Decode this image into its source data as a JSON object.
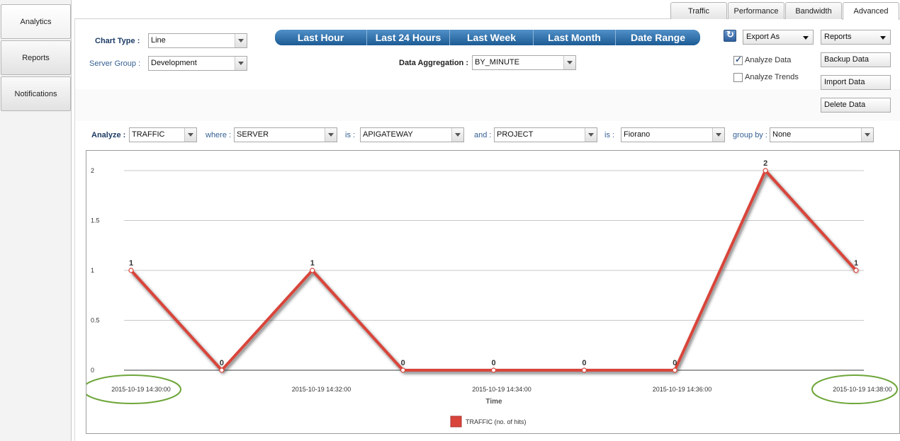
{
  "sidebar": {
    "items": [
      {
        "label": "Analytics",
        "active": true
      },
      {
        "label": "Reports",
        "active": false
      },
      {
        "label": "Notifications",
        "active": false
      }
    ]
  },
  "tabs": [
    {
      "label": "Traffic",
      "active": false
    },
    {
      "label": "Performance",
      "active": false
    },
    {
      "label": "Bandwidth",
      "active": false
    },
    {
      "label": "Advanced",
      "active": true
    }
  ],
  "controls": {
    "chart_type_label": "Chart Type :",
    "chart_type_value": "Line",
    "server_group_label": "Server Group :",
    "server_group_value": "Development",
    "data_aggregation_label": "Data Aggregation :",
    "data_aggregation_value": "BY_MINUTE"
  },
  "periods": [
    "Last Hour",
    "Last 24 Hours",
    "Last Week",
    "Last Month",
    "Date Range"
  ],
  "right_panel": {
    "export_label": "Export As",
    "reports_label": "Reports",
    "analyze_data_label": "Analyze Data",
    "analyze_data_checked": true,
    "analyze_trends_label": "Analyze Trends",
    "analyze_trends_checked": false,
    "backup_label": "Backup Data",
    "import_label": "Import Data",
    "delete_label": "Delete Data"
  },
  "filter": {
    "analyze_label": "Analyze :",
    "analyze_value": "TRAFFIC",
    "where_label": "where :",
    "where_value": "SERVER",
    "is1_label": "is :",
    "is1_value": "APIGATEWAY",
    "and_label": "and :",
    "and_value": "PROJECT",
    "is2_label": "is :",
    "is2_value": "Fiorano",
    "group_label": "group by :",
    "group_value": "None"
  },
  "chart_data": {
    "type": "line",
    "xlabel": "Time",
    "ylabel": "",
    "ylim": [
      0,
      2
    ],
    "yticks": [
      "0",
      "0.5",
      "1",
      "1.5",
      "2"
    ],
    "x_tick_labels": [
      "2015-10-19 14:30:00",
      "2015-10-19 14:32:00",
      "2015-10-19 14:34:00",
      "2015-10-19 14:36:00",
      "2015-10-19 14:38:00"
    ],
    "series": [
      {
        "name": "TRAFFIC (no. of hits)",
        "color": "#d9443a",
        "values": [
          1,
          0,
          1,
          0,
          0,
          0,
          0,
          2,
          1
        ]
      }
    ],
    "grid": true,
    "legend_position": "bottom"
  },
  "highlight_color": "#6ea63a"
}
